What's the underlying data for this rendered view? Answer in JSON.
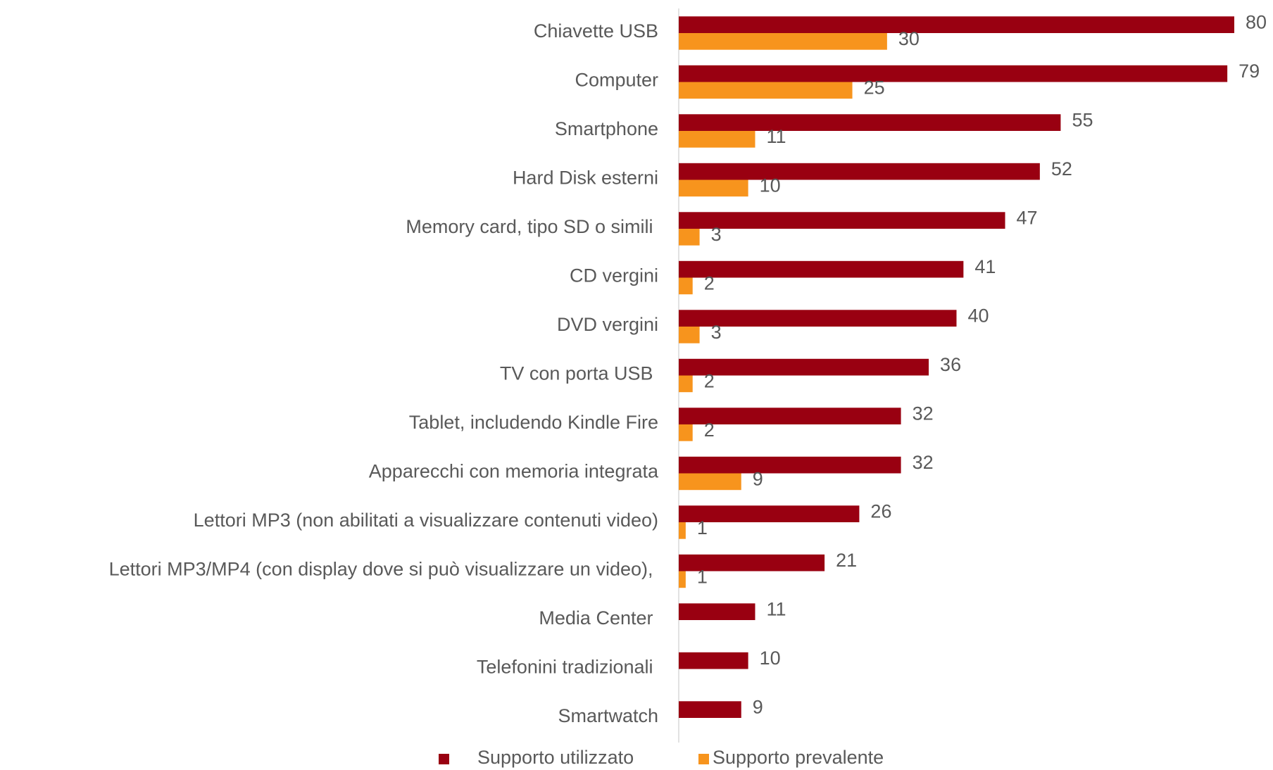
{
  "chart_data": {
    "type": "hbar",
    "categories": [
      "Chiavette USB",
      "Computer",
      "Smartphone",
      "Hard Disk esterni",
      "Memory card, tipo SD o simili ",
      "CD vergini",
      "DVD vergini",
      "TV con porta USB ",
      "Tablet, includendo Kindle Fire",
      "Apparecchi con memoria integrata",
      "Lettori MP3 (non abilitati a visualizzare contenuti video)",
      "Lettori MP3/MP4 (con display dove si può visualizzare un video), ",
      "Media Center ",
      "Telefonini tradizionali ",
      "Smartwatch"
    ],
    "series": [
      {
        "name": "Supporto utilizzato",
        "color": "#990011",
        "values": [
          80,
          79,
          55,
          52,
          47,
          41,
          40,
          36,
          32,
          32,
          26,
          21,
          11,
          10,
          9
        ]
      },
      {
        "name": "Supporto prevalente",
        "color": "#f7941d",
        "values": [
          30,
          25,
          11,
          10,
          3,
          2,
          3,
          2,
          2,
          9,
          1,
          1,
          null,
          null,
          null
        ]
      }
    ],
    "xlim": [
      0,
      80
    ],
    "legend": "bottom"
  }
}
